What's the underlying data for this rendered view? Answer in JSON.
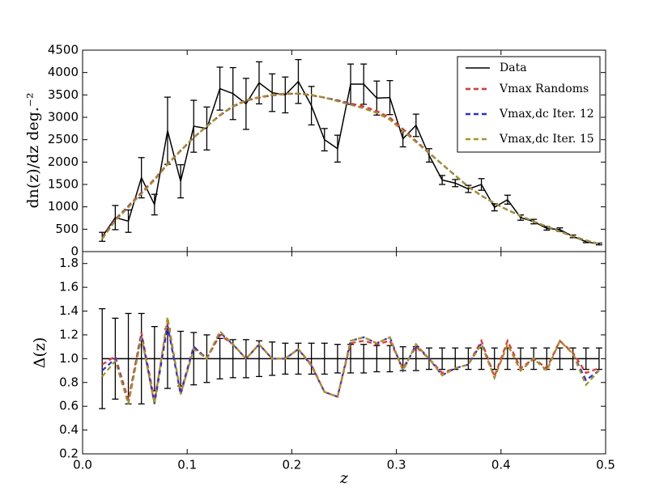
{
  "chart_data": [
    {
      "type": "line",
      "ylabel": "dn(z)/dz deg.⁻²",
      "x": [
        0.01875,
        0.03125,
        0.04375,
        0.05625,
        0.06875,
        0.08125,
        0.09375,
        0.10625,
        0.11875,
        0.13125,
        0.14375,
        0.15625,
        0.16875,
        0.18125,
        0.19375,
        0.20625,
        0.21875,
        0.23125,
        0.24375,
        0.25625,
        0.26875,
        0.28125,
        0.29375,
        0.30625,
        0.31875,
        0.33125,
        0.34375,
        0.35625,
        0.36875,
        0.38125,
        0.39375,
        0.40625,
        0.41875,
        0.43125,
        0.44375,
        0.45625,
        0.46875,
        0.48125,
        0.49375
      ],
      "xlim": [
        0,
        0.5
      ],
      "ylim": [
        0,
        4500
      ],
      "yticks": [
        0,
        500,
        1000,
        1500,
        2000,
        2500,
        3000,
        3500,
        4000,
        4500
      ],
      "legend": "upper right",
      "series": [
        {
          "name": "Data",
          "color": "#000000",
          "style": "solid",
          "values": [
            330,
            760,
            680,
            1650,
            1050,
            2700,
            1570,
            2800,
            2750,
            3640,
            3530,
            3300,
            3770,
            3550,
            3500,
            3800,
            3260,
            2500,
            2300,
            3740,
            3740,
            3430,
            3440,
            2520,
            2820,
            2150,
            1600,
            1530,
            1400,
            1500,
            990,
            1160,
            760,
            670,
            520,
            490,
            340,
            220,
            170
          ],
          "errors": [
            100,
            270,
            250,
            450,
            230,
            750,
            370,
            580,
            480,
            480,
            580,
            570,
            470,
            420,
            400,
            490,
            430,
            250,
            300,
            450,
            450,
            380,
            380,
            180,
            250,
            150,
            100,
            80,
            80,
            130,
            80,
            100,
            60,
            50,
            40,
            40,
            30,
            20,
            20
          ]
        },
        {
          "name": "Vmax Randoms",
          "color": "#ff2a2a",
          "style": "dashed",
          "values": [
            310,
            720,
            1020,
            1320,
            1620,
            1960,
            2260,
            2550,
            2800,
            3040,
            3240,
            3370,
            3440,
            3490,
            3520,
            3530,
            3490,
            3440,
            3380,
            3310,
            3240,
            3140,
            2990,
            2740,
            2470,
            2210,
            1950,
            1700,
            1450,
            1250,
            1080,
            930,
            800,
            670,
            560,
            450,
            340,
            250,
            170
          ]
        },
        {
          "name": "Vmax,dc Iter. 12",
          "color": "#2a2aff",
          "style": "dashed",
          "values": [
            290,
            700,
            1000,
            1300,
            1600,
            1950,
            2250,
            2550,
            2800,
            3050,
            3250,
            3380,
            3450,
            3500,
            3530,
            3530,
            3500,
            3440,
            3370,
            3290,
            3200,
            3100,
            2950,
            2700,
            2450,
            2200,
            1950,
            1700,
            1450,
            1250,
            1080,
            930,
            800,
            670,
            560,
            450,
            340,
            250,
            170
          ]
        },
        {
          "name": "Vmax,dc Iter. 15",
          "color": "#a19a14",
          "style": "dashed",
          "values": [
            280,
            690,
            990,
            1290,
            1600,
            1950,
            2250,
            2550,
            2800,
            3050,
            3250,
            3380,
            3450,
            3500,
            3530,
            3530,
            3500,
            3440,
            3360,
            3280,
            3200,
            3100,
            2950,
            2700,
            2450,
            2200,
            1950,
            1700,
            1450,
            1250,
            1080,
            930,
            800,
            670,
            560,
            450,
            340,
            250,
            170
          ]
        }
      ]
    },
    {
      "type": "line",
      "xlabel": "z",
      "ylabel": "Δ(z)",
      "x": [
        0.01875,
        0.03125,
        0.04375,
        0.05625,
        0.06875,
        0.08125,
        0.09375,
        0.10625,
        0.11875,
        0.13125,
        0.14375,
        0.15625,
        0.16875,
        0.18125,
        0.19375,
        0.20625,
        0.21875,
        0.23125,
        0.24375,
        0.25625,
        0.26875,
        0.28125,
        0.29375,
        0.30625,
        0.31875,
        0.33125,
        0.34375,
        0.35625,
        0.36875,
        0.38125,
        0.39375,
        0.40625,
        0.41875,
        0.43125,
        0.44375,
        0.45625,
        0.46875,
        0.48125,
        0.49375
      ],
      "xlim": [
        0,
        0.5
      ],
      "xticks": [
        {
          "value": 0,
          "label": "0.0"
        },
        0.1,
        0.2,
        0.3,
        0.4,
        0.5
      ],
      "ylim": [
        0.2,
        1.9
      ],
      "yticks": [
        0.2,
        0.4,
        0.6,
        0.8,
        {
          "value": 1,
          "label": "1.0"
        },
        1.2,
        1.4,
        1.6,
        1.8
      ],
      "series": [
        {
          "color": "#000000",
          "style": "solid",
          "values": [
            1,
            1,
            1,
            1,
            1,
            1,
            1,
            1,
            1,
            1,
            1,
            1,
            1,
            1,
            1,
            1,
            1,
            1,
            1,
            1,
            1,
            1,
            1,
            1,
            1,
            1,
            1,
            1,
            1,
            1,
            1,
            1,
            1,
            1,
            1,
            1,
            1,
            1,
            1
          ],
          "errors": [
            0.42,
            0.34,
            0.38,
            0.38,
            0.27,
            0.25,
            0.23,
            0.22,
            0.2,
            0.17,
            0.16,
            0.16,
            0.15,
            0.14,
            0.13,
            0.13,
            0.13,
            0.13,
            0.12,
            0.12,
            0.12,
            0.11,
            0.11,
            0.1,
            0.1,
            0.09,
            0.09,
            0.09,
            0.09,
            0.09,
            0.09,
            0.09,
            0.09,
            0.09,
            0.09,
            0.09,
            0.09,
            0.09,
            0.09
          ]
        },
        {
          "color": "#ff2a2a",
          "style": "dashed",
          "values": [
            0.95,
            1.02,
            0.65,
            1.22,
            0.65,
            1.3,
            0.72,
            1.1,
            1.0,
            1.2,
            1.12,
            1.0,
            1.12,
            1.0,
            1.0,
            1.08,
            0.95,
            0.72,
            0.68,
            1.13,
            1.15,
            1.12,
            1.15,
            0.92,
            1.1,
            1.0,
            0.88,
            0.92,
            0.95,
            1.15,
            0.85,
            1.15,
            0.92,
            1.0,
            0.92,
            1.15,
            1.05,
            0.88,
            0.92
          ]
        },
        {
          "color": "#2a2aff",
          "style": "dashed",
          "values": [
            0.9,
            1.0,
            0.62,
            1.2,
            0.62,
            1.28,
            0.7,
            1.1,
            1.0,
            1.22,
            1.12,
            1.0,
            1.12,
            1.0,
            1.0,
            1.08,
            0.94,
            0.72,
            0.68,
            1.15,
            1.18,
            1.13,
            1.18,
            0.9,
            1.12,
            1.0,
            0.86,
            0.92,
            0.95,
            1.13,
            0.84,
            1.12,
            0.9,
            1.0,
            0.9,
            1.15,
            1.04,
            0.82,
            0.9
          ]
        },
        {
          "color": "#a19a14",
          "style": "dashed",
          "values": [
            0.85,
            0.98,
            0.62,
            1.18,
            0.62,
            1.35,
            0.7,
            1.08,
            1.0,
            1.23,
            1.12,
            1.0,
            1.12,
            1.0,
            1.0,
            1.08,
            0.94,
            0.72,
            0.68,
            1.15,
            1.18,
            1.13,
            1.18,
            0.9,
            1.12,
            1.0,
            0.86,
            0.92,
            0.95,
            1.12,
            0.84,
            1.12,
            0.9,
            1.0,
            0.9,
            1.15,
            1.04,
            0.78,
            0.9
          ]
        }
      ]
    }
  ]
}
